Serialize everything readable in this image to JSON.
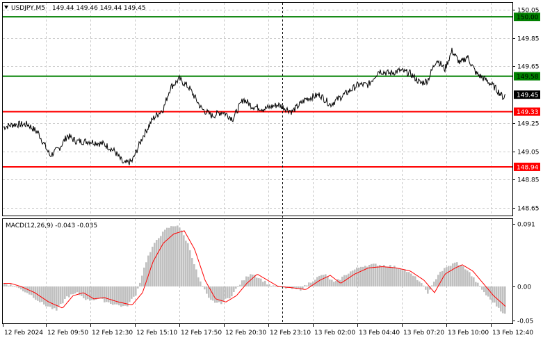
{
  "header": {
    "symbol_label": "USDJPY,M5",
    "ohlc": "149.44 149.46 149.44 149.45",
    "menu_icon": "triangle-down-icon"
  },
  "price_axis": {
    "ticks": [
      "150.05",
      "149.85",
      "149.65",
      "149.25",
      "149.05",
      "148.85",
      "148.65"
    ],
    "range": [
      148.6,
      150.08
    ]
  },
  "levels": [
    {
      "price": 150.0,
      "label": "150.00",
      "color": "#008000",
      "text_color": "#000000"
    },
    {
      "price": 149.58,
      "label": "149.58",
      "color": "#008000",
      "text_color": "#000000"
    },
    {
      "price": 149.45,
      "label": "149.45",
      "color": "#000000",
      "text_color": "#ffffff"
    },
    {
      "price": 149.33,
      "label": "149.33",
      "color": "#ff0000",
      "text_color": "#ffffff"
    },
    {
      "price": 148.94,
      "label": "148.94",
      "color": "#ff0000",
      "text_color": "#ffffff"
    }
  ],
  "macd": {
    "title": "MACD(12,26,9) -0.043 -0.035",
    "ticks": [
      "0.091",
      "0.00",
      "-0.05"
    ],
    "range": [
      -0.052,
      0.091
    ],
    "histogram_color": "#c0c0c0",
    "signal_color": "#ff0000"
  },
  "time_axis": {
    "labels": [
      "12 Feb 2024",
      "12 Feb 09:50",
      "12 Feb 12:30",
      "12 Feb 15:10",
      "12 Feb 17:50",
      "12 Feb 20:30",
      "12 Feb 23:10",
      "13 Feb 02:00",
      "13 Feb 04:40",
      "13 Feb 07:20",
      "13 Feb 10:00",
      "13 Feb 12:40"
    ]
  },
  "chart_data": {
    "type": "line",
    "title": "USDJPY,M5",
    "x": [
      "12 Feb 2024",
      "12 Feb 09:50",
      "12 Feb 12:30",
      "12 Feb 15:10",
      "12 Feb 17:50",
      "12 Feb 20:30",
      "12 Feb 23:10",
      "13 Feb 02:00",
      "13 Feb 04:40",
      "13 Feb 07:20",
      "13 Feb 10:00",
      "13 Feb 12:40"
    ],
    "price_series": [
      {
        "name": "USDJPY,M5",
        "values": [
          149.22,
          149.1,
          149.08,
          148.98,
          149.46,
          149.3,
          149.36,
          149.38,
          149.5,
          149.57,
          149.66,
          149.45
        ]
      }
    ],
    "macd_series": [
      {
        "name": "MACD histogram",
        "values": [
          0.005,
          -0.015,
          -0.012,
          -0.02,
          0.09,
          -0.015,
          0.0,
          0.015,
          0.028,
          0.022,
          0.03,
          -0.043
        ]
      },
      {
        "name": "Signal",
        "values": [
          0.005,
          -0.012,
          -0.013,
          -0.018,
          0.08,
          -0.012,
          0.0,
          0.008,
          0.025,
          0.025,
          0.028,
          -0.035
        ]
      }
    ],
    "ylim": [
      148.6,
      150.08
    ],
    "grid": true
  }
}
